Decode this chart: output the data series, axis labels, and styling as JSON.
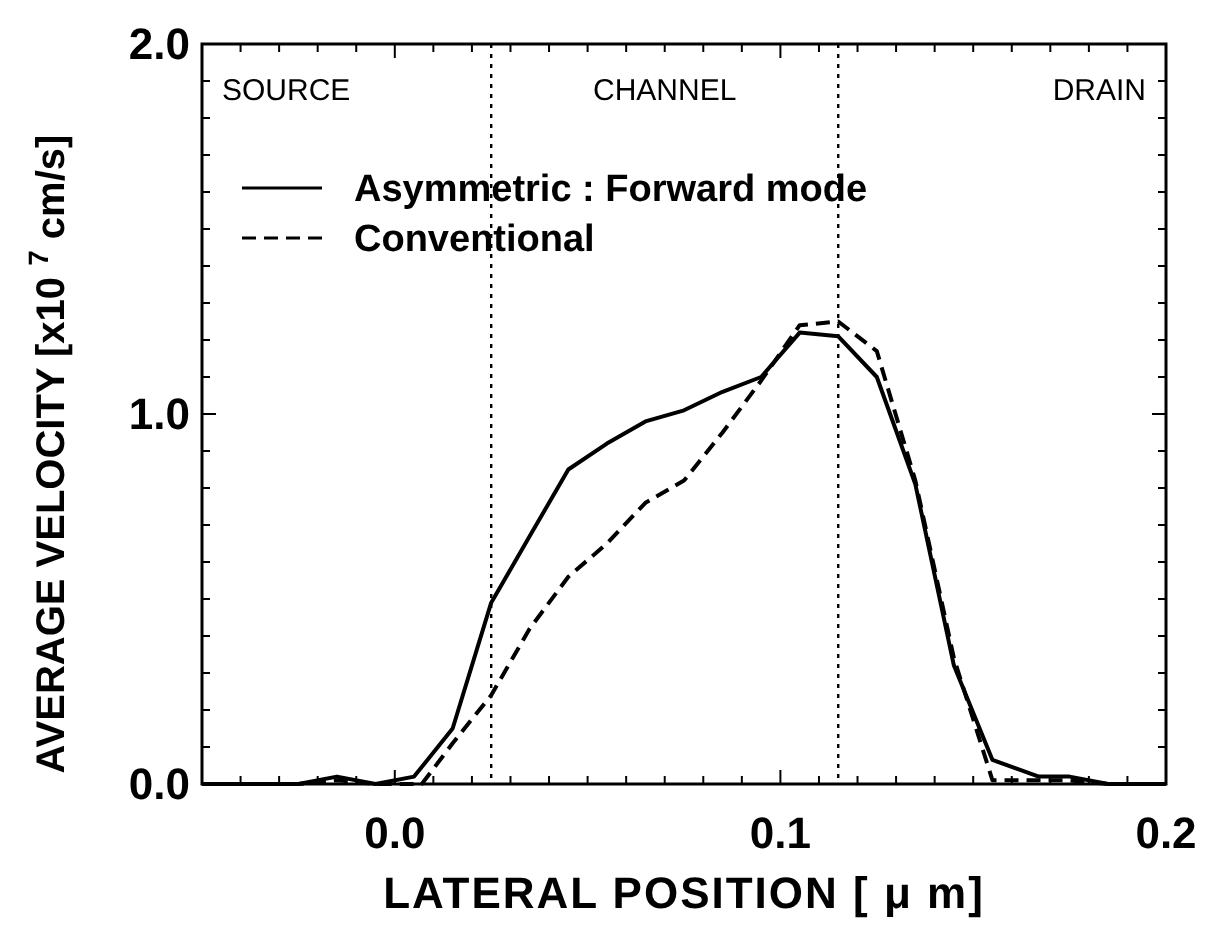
{
  "chart_data": {
    "type": "line",
    "xlabel": "LATERAL POSITION [ μ m]",
    "ylabel": "AVERAGE VELOCITY [x10 $^{7}$cm/s]",
    "xlim": [
      -0.05,
      0.2
    ],
    "ylim": [
      0,
      2
    ],
    "xticks": [
      {
        "value": -0.04,
        "label": null
      },
      {
        "value": -0.03,
        "label": null
      },
      {
        "value": -0.02,
        "label": null
      },
      {
        "value": -0.01,
        "label": null
      },
      {
        "value": 0,
        "label": "0.0"
      },
      {
        "value": 0.01,
        "label": null
      },
      {
        "value": 0.02,
        "label": null
      },
      {
        "value": 0.03,
        "label": null
      },
      {
        "value": 0.04,
        "label": null
      },
      {
        "value": 0.05,
        "label": null
      },
      {
        "value": 0.06,
        "label": null
      },
      {
        "value": 0.07,
        "label": null
      },
      {
        "value": 0.08,
        "label": null
      },
      {
        "value": 0.09,
        "label": null
      },
      {
        "value": 0.1,
        "label": "0.1"
      },
      {
        "value": 0.11,
        "label": null
      },
      {
        "value": 0.12,
        "label": null
      },
      {
        "value": 0.13,
        "label": null
      },
      {
        "value": 0.14,
        "label": null
      },
      {
        "value": 0.15,
        "label": null
      },
      {
        "value": 0.16,
        "label": null
      },
      {
        "value": 0.17,
        "label": null
      },
      {
        "value": 0.18,
        "label": null
      },
      {
        "value": 0.19,
        "label": null
      },
      {
        "value": 0.2,
        "label": "0.2"
      }
    ],
    "yticks": [
      {
        "value": 0,
        "label": "0.0"
      },
      {
        "value": 0.1,
        "label": null
      },
      {
        "value": 0.2,
        "label": null
      },
      {
        "value": 0.3,
        "label": null
      },
      {
        "value": 0.4,
        "label": null
      },
      {
        "value": 0.5,
        "label": null
      },
      {
        "value": 0.6,
        "label": null
      },
      {
        "value": 0.7,
        "label": null
      },
      {
        "value": 0.8,
        "label": null
      },
      {
        "value": 0.9,
        "label": null
      },
      {
        "value": 1,
        "label": "1.0"
      },
      {
        "value": 1.1,
        "label": null
      },
      {
        "value": 1.2,
        "label": null
      },
      {
        "value": 1.3,
        "label": null
      },
      {
        "value": 1.4,
        "label": null
      },
      {
        "value": 1.5,
        "label": null
      },
      {
        "value": 1.6,
        "label": null
      },
      {
        "value": 1.7,
        "label": null
      },
      {
        "value": 1.8,
        "label": null
      },
      {
        "value": 1.9,
        "label": null
      },
      {
        "value": 2,
        "label": "2.0"
      }
    ],
    "grid": false,
    "legend": "top left",
    "marker": "none",
    "series": [
      {
        "name": "Asymmetric : Forward mode",
        "color": "#000000",
        "line_style": "solid",
        "x": [
          -0.05,
          -0.04,
          -0.025,
          -0.015,
          -0.005,
          0.005,
          0.015,
          0.025,
          0.035,
          0.045,
          0.055,
          0.065,
          0.075,
          0.085,
          0.095,
          0.105,
          0.115,
          0.125,
          0.135,
          0.145,
          0.155,
          0.167,
          0.175,
          0.185,
          0.2
        ],
        "values": [
          0,
          0,
          0,
          0.02,
          0,
          0.02,
          0.15,
          0.49,
          0.67,
          0.85,
          0.92,
          0.98,
          1.01,
          1.06,
          1.1,
          1.22,
          1.21,
          1.1,
          0.81,
          0.32,
          0.065,
          0.02,
          0.02,
          0,
          0
        ]
      },
      {
        "name": "Conventional",
        "color": "#000000",
        "line_style": "dashed",
        "x": [
          -0.05,
          -0.04,
          -0.025,
          -0.015,
          -0.005,
          0.007,
          0.015,
          0.025,
          0.035,
          0.045,
          0.055,
          0.065,
          0.075,
          0.085,
          0.095,
          0.105,
          0.115,
          0.125,
          0.135,
          0.145,
          0.155,
          0.165,
          0.175,
          0.185,
          0.2
        ],
        "values": [
          0,
          0,
          0,
          0.01,
          0,
          0,
          0.11,
          0.24,
          0.42,
          0.56,
          0.65,
          0.76,
          0.82,
          0.95,
          1.09,
          1.24,
          1.25,
          1.17,
          0.82,
          0.34,
          0.01,
          0.01,
          0.01,
          0,
          0
        ]
      }
    ],
    "ref_lines": [
      {
        "axis": "x",
        "value": 0.025,
        "line_style": "dotted"
      },
      {
        "axis": "x",
        "value": 0.115,
        "line_style": "dotted"
      }
    ],
    "annotations": [
      "SOURCE",
      "CHANNEL",
      "DRAIN"
    ]
  }
}
